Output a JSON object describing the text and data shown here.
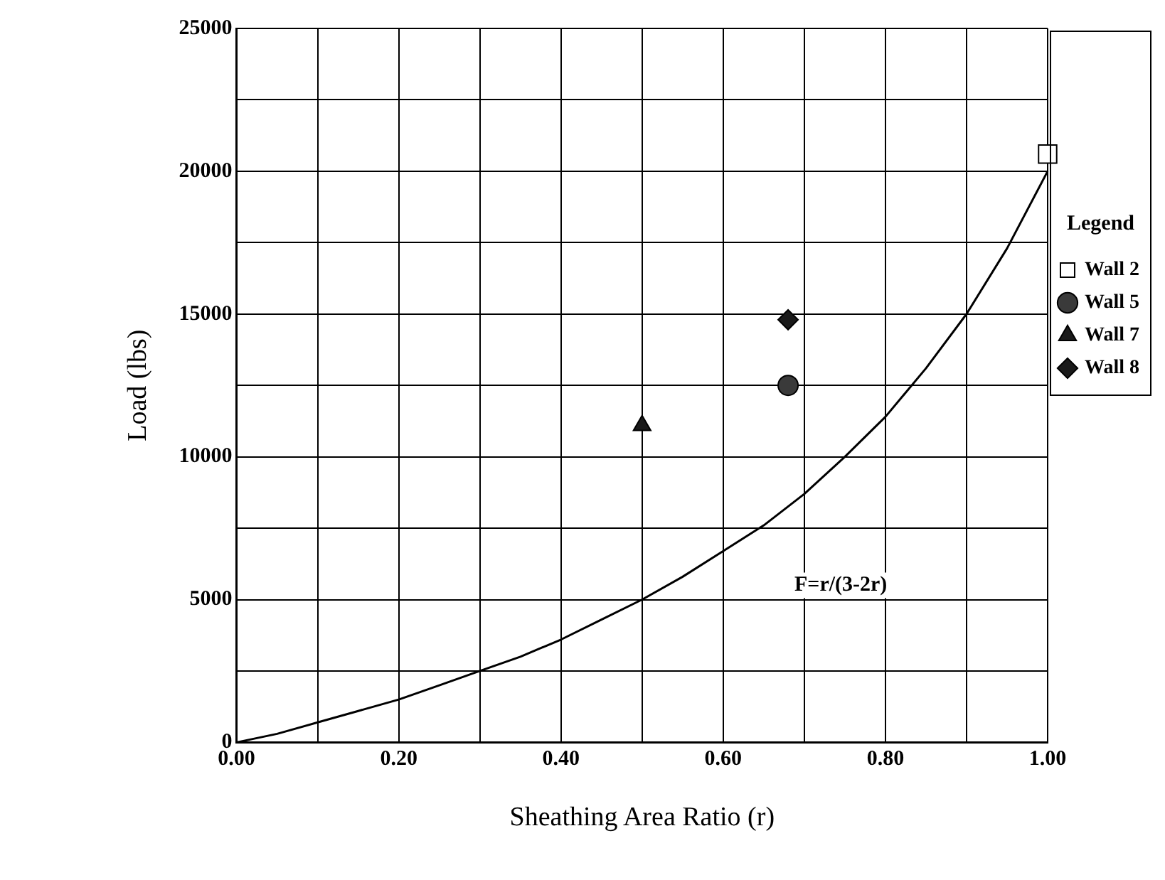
{
  "chart_data": {
    "type": "scatter",
    "xlabel": "Sheathing Area Ratio (r)",
    "ylabel": "Load (lbs)",
    "legend_title": "Legend",
    "xlim": [
      0,
      1
    ],
    "ylim": [
      0,
      25000
    ],
    "xticks": [
      {
        "value": 0,
        "label": "0.00"
      },
      {
        "value": 0.1,
        "label": null
      },
      {
        "value": 0.2,
        "label": "0.20"
      },
      {
        "value": 0.3,
        "label": null
      },
      {
        "value": 0.4,
        "label": "0.40"
      },
      {
        "value": 0.5,
        "label": null
      },
      {
        "value": 0.6,
        "label": "0.60"
      },
      {
        "value": 0.7,
        "label": null
      },
      {
        "value": 0.8,
        "label": "0.80"
      },
      {
        "value": 0.9,
        "label": null
      },
      {
        "value": 1,
        "label": "1.00"
      }
    ],
    "yticks": [
      0,
      {
        "value": 2500,
        "label": null
      },
      5000,
      {
        "value": 7500,
        "label": null
      },
      10000,
      {
        "value": 12500,
        "label": null
      },
      15000,
      {
        "value": 17500,
        "label": null
      },
      20000,
      {
        "value": 22500,
        "label": null
      },
      25000
    ],
    "grid": true,
    "legend": "right",
    "annotations": [
      "F=r/(3-2r)"
    ],
    "series": [
      {
        "type": "line",
        "color": "#000000",
        "marker": "none",
        "line_style": "solid",
        "x": [
          0,
          0.05,
          0.1,
          0.15,
          0.2,
          0.25,
          0.3,
          0.35,
          0.4,
          0.45,
          0.5,
          0.55,
          0.6,
          0.65,
          0.7,
          0.75,
          0.8,
          0.85,
          0.9,
          0.95,
          1
        ],
        "values": [
          0,
          300,
          700,
          1100,
          1500,
          2000,
          2500,
          3000,
          3600,
          4300,
          5000,
          5800,
          6700,
          7600,
          8700,
          10000,
          11400,
          13100,
          15000,
          17300,
          20000
        ]
      },
      {
        "name": "Wall 2",
        "color": "#ffffff",
        "marker": "square",
        "x": [
          1
        ],
        "values": [
          20600
        ]
      },
      {
        "name": "Wall 5",
        "color": "#3a3a3a",
        "marker": "circle",
        "x": [
          0.68
        ],
        "values": [
          12500
        ]
      },
      {
        "name": "Wall 7",
        "color": "#1a1a1a",
        "marker": "triangle",
        "x": [
          0.5
        ],
        "values": [
          11100
        ]
      },
      {
        "name": "Wall 8",
        "color": "#1a1a1a",
        "marker": "diamond",
        "x": [
          0.68
        ],
        "values": [
          14800
        ]
      }
    ]
  }
}
